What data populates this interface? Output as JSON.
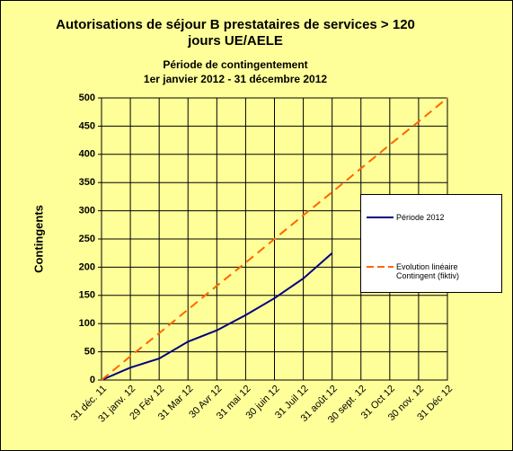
{
  "chart_data": {
    "type": "line",
    "title": [
      "Autorisations de séjour B prestataires de services > 120",
      "jours UE/AELE"
    ],
    "subtitle": [
      "Période de contingentement",
      "1er janvier 2012 - 31 décembre 2012"
    ],
    "y_label": "Contingents",
    "categories": [
      "31 déc. 11",
      "31 janv. 12",
      "29 Fév 12",
      "31 Mar 12",
      "30 Avr 12",
      "31 mai 12",
      "30 juin 12",
      "31 Juil 12",
      "31 août 12",
      "30 sept. 12",
      "31 Oct 12",
      "30 nov. 12",
      "31 Déc 12"
    ],
    "series": [
      {
        "name": "Période 2012",
        "color": "#000080",
        "dash": false,
        "values": [
          0,
          22,
          38,
          68,
          88,
          115,
          145,
          180,
          225,
          null,
          null,
          null,
          null
        ]
      },
      {
        "name": "Evolution linéaire Contingent (fiktiv)",
        "color": "#ff6600",
        "dash": true,
        "values": [
          0,
          42,
          83,
          125,
          167,
          208,
          250,
          292,
          333,
          375,
          417,
          458,
          500
        ]
      }
    ],
    "ylim": [
      0,
      500
    ],
    "yticks": [
      0,
      50,
      100,
      150,
      200,
      250,
      300,
      350,
      400,
      450,
      500
    ],
    "grid": true,
    "background": "#ffff99"
  }
}
